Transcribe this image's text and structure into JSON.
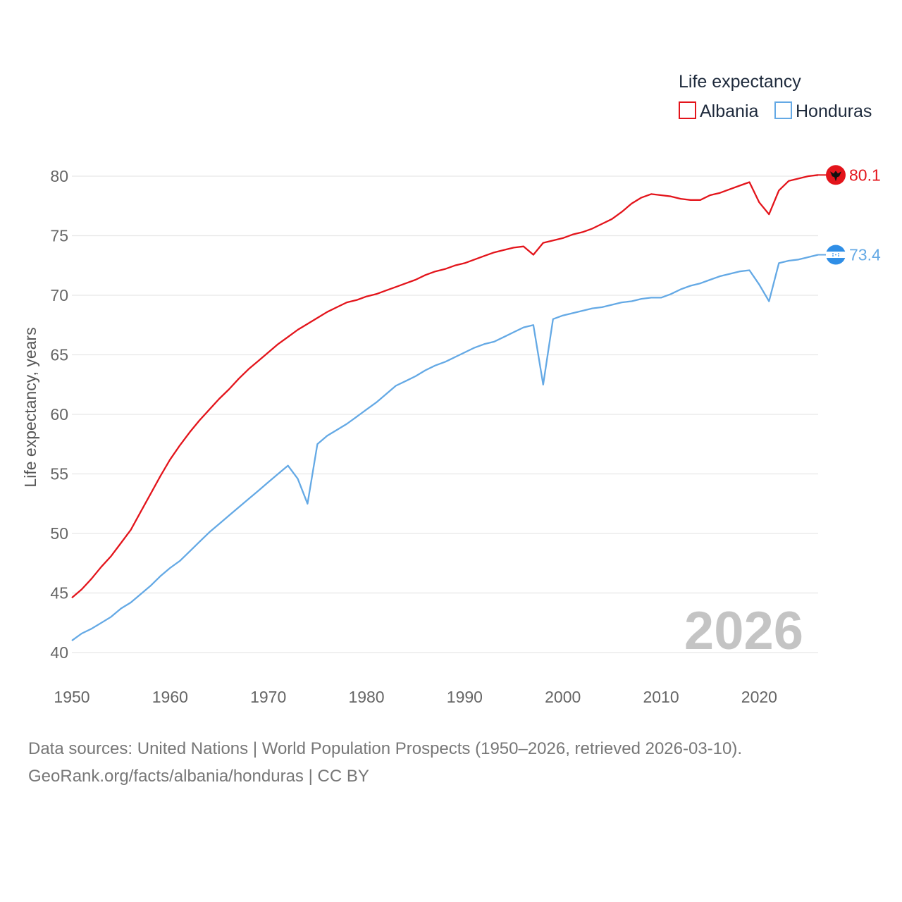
{
  "chart_data": {
    "type": "line",
    "legend_title": "Life expectancy",
    "ylabel": "Life expectancy, years",
    "xlabel": "",
    "xlim": [
      1950,
      2026
    ],
    "ylim": [
      40,
      81
    ],
    "y_ticks": [
      40,
      45,
      50,
      55,
      60,
      65,
      70,
      75,
      80
    ],
    "x_ticks": [
      1950,
      1960,
      1970,
      1980,
      1990,
      2000,
      2010,
      2020
    ],
    "year_label": "2026",
    "legend_position": "top-right",
    "x": [
      1950,
      1951,
      1952,
      1953,
      1954,
      1955,
      1956,
      1957,
      1958,
      1959,
      1960,
      1961,
      1962,
      1963,
      1964,
      1965,
      1966,
      1967,
      1968,
      1969,
      1970,
      1971,
      1972,
      1973,
      1974,
      1975,
      1976,
      1977,
      1978,
      1979,
      1980,
      1981,
      1982,
      1983,
      1984,
      1985,
      1986,
      1987,
      1988,
      1989,
      1990,
      1991,
      1992,
      1993,
      1994,
      1995,
      1996,
      1997,
      1998,
      1999,
      2000,
      2001,
      2002,
      2003,
      2004,
      2005,
      2006,
      2007,
      2008,
      2009,
      2010,
      2011,
      2012,
      2013,
      2014,
      2015,
      2016,
      2017,
      2018,
      2019,
      2020,
      2021,
      2022,
      2023,
      2024,
      2025,
      2026
    ],
    "series": [
      {
        "name": "Albania",
        "color": "#e3141b",
        "end_label": "80.1",
        "flag_icon": "albania-flag-icon",
        "values": [
          44.6,
          45.3,
          46.2,
          47.2,
          48.1,
          49.2,
          50.3,
          51.8,
          53.3,
          54.8,
          56.2,
          57.4,
          58.5,
          59.5,
          60.4,
          61.3,
          62.1,
          63.0,
          63.8,
          64.5,
          65.2,
          65.9,
          66.5,
          67.1,
          67.6,
          68.1,
          68.6,
          69.0,
          69.4,
          69.6,
          69.9,
          70.1,
          70.4,
          70.7,
          71.0,
          71.3,
          71.7,
          72.0,
          72.2,
          72.5,
          72.7,
          73.0,
          73.3,
          73.6,
          73.8,
          74.0,
          74.1,
          73.4,
          74.4,
          74.6,
          74.8,
          75.1,
          75.3,
          75.6,
          76.0,
          76.4,
          77.0,
          77.7,
          78.2,
          78.5,
          78.4,
          78.3,
          78.1,
          78.0,
          78.0,
          78.4,
          78.6,
          78.9,
          79.2,
          79.5,
          77.8,
          76.8,
          78.8,
          79.6,
          79.8,
          80.0,
          80.1
        ]
      },
      {
        "name": "Honduras",
        "color": "#64a9e5",
        "end_label": "73.4",
        "flag_icon": "honduras-flag-icon",
        "values": [
          41.0,
          41.6,
          42.0,
          42.5,
          43.0,
          43.7,
          44.2,
          44.9,
          45.6,
          46.4,
          47.1,
          47.7,
          48.5,
          49.3,
          50.1,
          50.8,
          51.5,
          52.2,
          52.9,
          53.6,
          54.3,
          55.0,
          55.7,
          54.6,
          52.5,
          57.5,
          58.2,
          58.7,
          59.2,
          59.8,
          60.4,
          61.0,
          61.7,
          62.4,
          62.8,
          63.2,
          63.7,
          64.1,
          64.4,
          64.8,
          65.2,
          65.6,
          65.9,
          66.1,
          66.5,
          66.9,
          67.3,
          67.5,
          62.5,
          68.0,
          68.3,
          68.5,
          68.7,
          68.9,
          69.0,
          69.2,
          69.4,
          69.5,
          69.7,
          69.8,
          69.8,
          70.1,
          70.5,
          70.8,
          71.0,
          71.3,
          71.6,
          71.8,
          72.0,
          72.1,
          70.9,
          69.5,
          72.7,
          72.9,
          73.0,
          73.2,
          73.4
        ]
      }
    ]
  },
  "footer": {
    "line1": "Data sources: United Nations | World Population Prospects (1950–2026, retrieved 2026-03-10).",
    "line2": "GeoRank.org/facts/albania/honduras | CC BY"
  }
}
